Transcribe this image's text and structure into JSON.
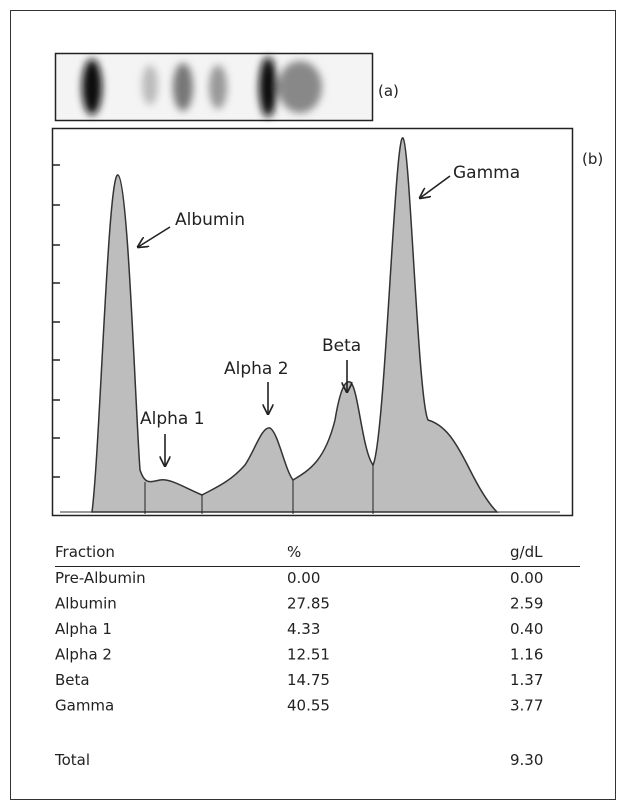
{
  "panel_a": {
    "label": "(a)"
  },
  "panel_b": {
    "label": "(b)",
    "peaks": [
      "Albumin",
      "Alpha 1",
      "Alpha 2",
      "Beta",
      "Gamma"
    ]
  },
  "table": {
    "header": [
      "Fraction",
      "%",
      "g/dL"
    ],
    "rows": [
      [
        "Pre-Albumin",
        "0.00",
        "0.00"
      ],
      [
        "Albumin",
        "27.85",
        "2.59"
      ],
      [
        "Alpha 1",
        "4.33",
        "0.40"
      ],
      [
        "Alpha 2",
        "12.51",
        "1.16"
      ],
      [
        "Beta",
        "14.75",
        "1.37"
      ],
      [
        "Gamma",
        "40.55",
        "3.77"
      ]
    ],
    "total": {
      "label": "Total",
      "value": "9.30"
    }
  }
}
